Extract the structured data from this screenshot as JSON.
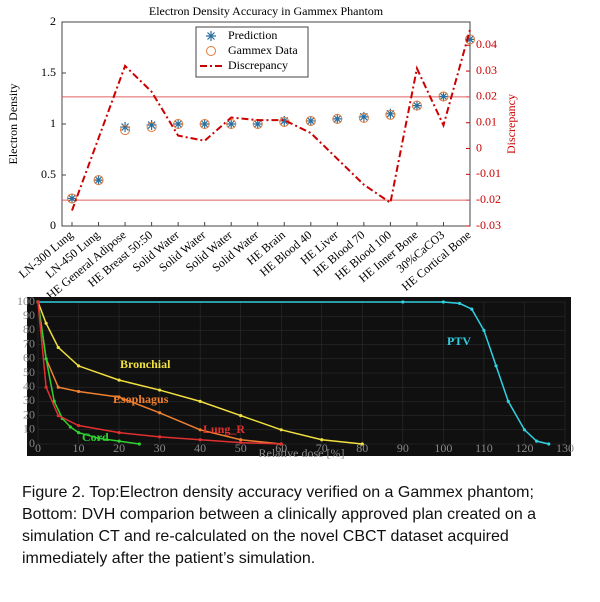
{
  "chart_data": [
    {
      "type": "combo",
      "title": "Electron Density Accuracy in Gammex Phantom",
      "y_label": "Electron Density",
      "y2_label": "Discrepancy",
      "categories": [
        "LN-300 Lung",
        "LN-450 Lung",
        "HE General Adipose",
        "HE Breast 50:50",
        "Solid Water",
        "Solid Water",
        "Solid Water",
        "Solid Water",
        "HE Brain",
        "HE Blood 40",
        "HE Liver",
        "HE Blood 70",
        "HE Blood 100",
        "HE Inner Bone",
        "30%CaCO3",
        "HE Cortical Bone"
      ],
      "series": [
        {
          "name": "Prediction",
          "color": "#2a6f9e",
          "marker": "star",
          "values": [
            0.27,
            0.45,
            0.97,
            0.99,
            1.0,
            1.0,
            1.0,
            1.0,
            1.03,
            1.03,
            1.05,
            1.07,
            1.1,
            1.18,
            1.27,
            1.83
          ]
        },
        {
          "name": "Gammex Data",
          "color": "#e07a3a",
          "marker": "circle",
          "values": [
            0.27,
            0.45,
            0.94,
            0.97,
            1.0,
            1.0,
            1.0,
            1.0,
            1.02,
            1.03,
            1.05,
            1.06,
            1.09,
            1.18,
            1.27,
            1.83
          ]
        },
        {
          "name": "Discrepancy",
          "color": "#cc0000",
          "marker": "dashdot",
          "axis": "y2",
          "values": [
            -0.024,
            0.004,
            0.032,
            0.022,
            0.005,
            0.003,
            0.012,
            0.011,
            0.011,
            0.006,
            -0.004,
            -0.014,
            -0.021,
            0.031,
            0.009,
            0.046
          ]
        }
      ],
      "reference_lines": [
        0.02,
        -0.02
      ],
      "reference_color": "#e06060",
      "ylim": [
        0,
        2
      ],
      "yticks": [
        0,
        0.5,
        1,
        1.5,
        2
      ],
      "y2lim": [
        -0.03,
        0.049
      ],
      "y2ticks": [
        -0.03,
        -0.02,
        -0.01,
        0,
        0.01,
        0.02,
        0.03,
        0.04
      ]
    },
    {
      "type": "line",
      "x_label": "Relative dose [%]",
      "background": "#101010",
      "xlim": [
        0,
        130
      ],
      "xticks": [
        0,
        10,
        20,
        30,
        40,
        50,
        60,
        70,
        80,
        90,
        100,
        110,
        120,
        130
      ],
      "ylim": [
        0,
        100
      ],
      "yticks": [
        0,
        10,
        20,
        30,
        40,
        50,
        60,
        70,
        80,
        90,
        100
      ],
      "series": [
        {
          "name": "PTV",
          "color": "#30d0e0",
          "x": [
            0,
            90,
            100,
            104,
            107,
            110,
            113,
            116,
            120,
            123,
            126
          ],
          "values": [
            100,
            100,
            100,
            99,
            95,
            80,
            55,
            30,
            10,
            2,
            0
          ]
        },
        {
          "name": "Bronchial",
          "color": "#f0e040",
          "x": [
            0,
            2,
            5,
            10,
            20,
            30,
            40,
            50,
            60,
            70,
            80
          ],
          "values": [
            100,
            85,
            68,
            55,
            45,
            38,
            30,
            20,
            10,
            3,
            0
          ]
        },
        {
          "name": "Esophagus",
          "color": "#f08030",
          "x": [
            0,
            2,
            5,
            10,
            20,
            30,
            40,
            50,
            60
          ],
          "values": [
            100,
            60,
            40,
            37,
            33,
            22,
            10,
            3,
            0
          ]
        },
        {
          "name": "Cord",
          "color": "#30d030",
          "x": [
            0,
            2,
            4,
            6,
            8,
            10,
            15,
            20,
            25
          ],
          "values": [
            100,
            60,
            30,
            18,
            12,
            8,
            4,
            2,
            0
          ]
        },
        {
          "name": "Lung_R",
          "color": "#e03030",
          "x": [
            0,
            2,
            5,
            10,
            20,
            30,
            40,
            50,
            60
          ],
          "values": [
            100,
            40,
            20,
            13,
            8,
            5,
            3,
            1,
            0
          ]
        }
      ]
    }
  ],
  "caption": [
    "Figure 2. Top:Electron density accuracy verified on a Gammex phantom;",
    "Bottom: DVH comparion between a clinically approved plan created on a",
    "simulation CT and re-calculated on the novel CBCT dataset acquired",
    "immediately after the patient’s simulation."
  ]
}
